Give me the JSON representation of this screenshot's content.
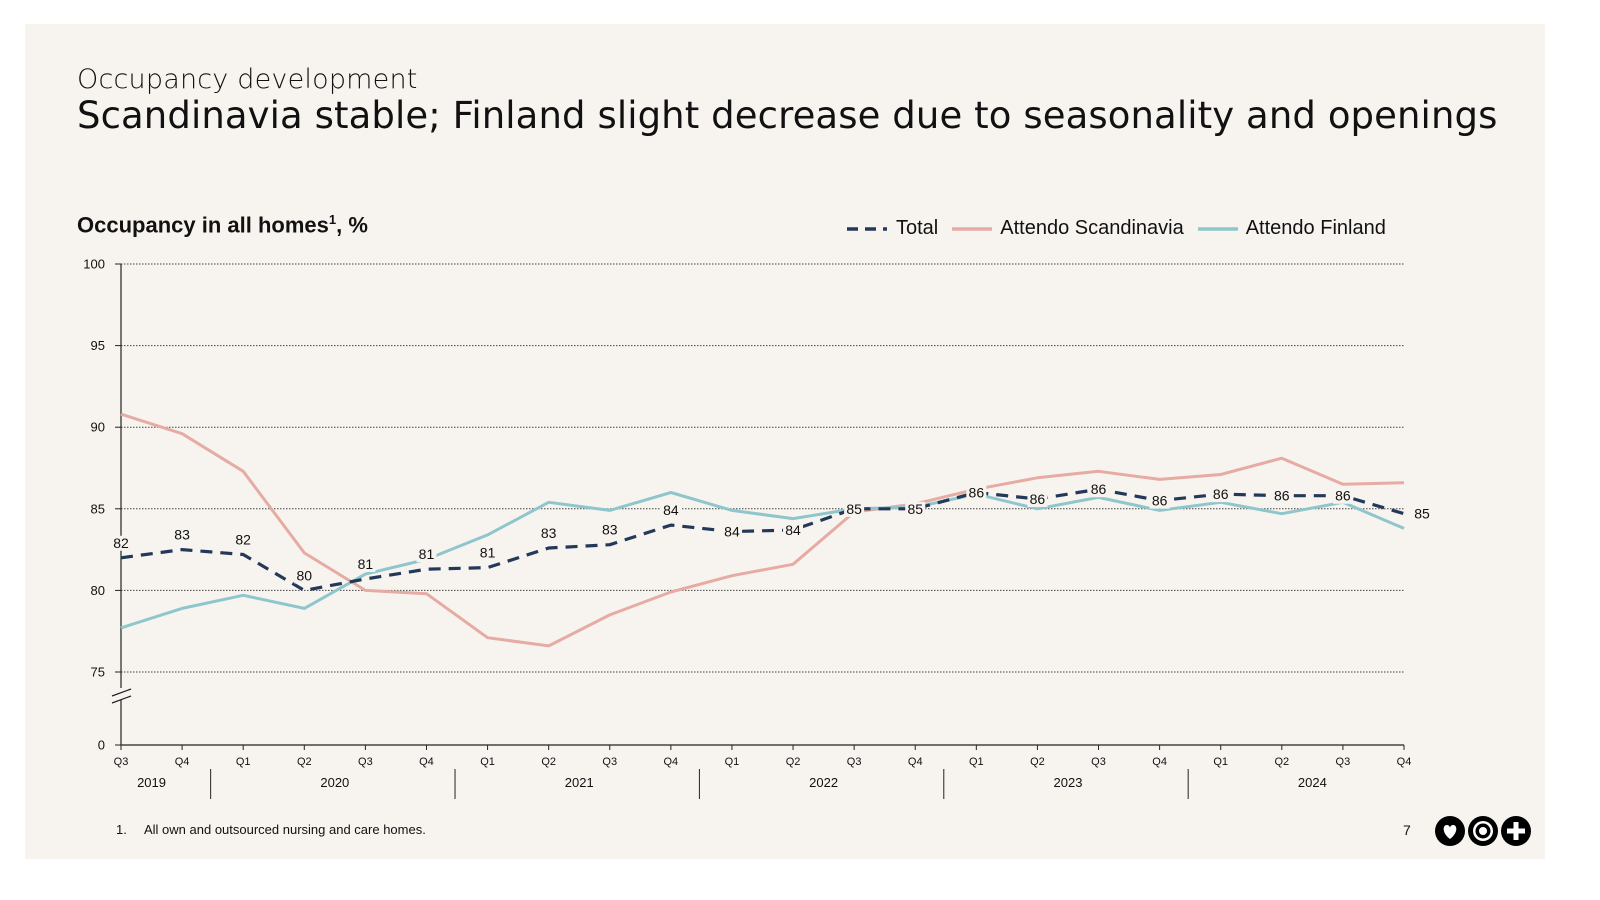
{
  "kicker": "Occupancy development",
  "headline": "Scandinavia stable; Finland slight decrease due to seasonality and openings",
  "chart_title": "Occupancy in all homes",
  "chart_title_sup": "1",
  "chart_title_suffix": ", %",
  "footnote": {
    "number": "1.",
    "text": "All own and outsourced nursing and care homes."
  },
  "page_number": "7",
  "colors": {
    "total": "#24395a",
    "scandinavia": "#e6aba3",
    "finland": "#8ec6cc",
    "background": "#f7f4f0"
  },
  "logo_icons": [
    "heart-icon",
    "target-icon",
    "plus-icon"
  ],
  "chart_data": {
    "type": "line",
    "title": "Occupancy in all homes¹, %",
    "ylabel": "%",
    "yticks": [
      0,
      75,
      80,
      85,
      90,
      95,
      100
    ],
    "ylim": [
      75,
      100
    ],
    "axis_break": true,
    "categories": [
      "Q3",
      "Q4",
      "Q1",
      "Q2",
      "Q3",
      "Q4",
      "Q1",
      "Q2",
      "Q3",
      "Q4",
      "Q1",
      "Q2",
      "Q3",
      "Q4",
      "Q1",
      "Q2",
      "Q3",
      "Q4",
      "Q1",
      "Q2",
      "Q3",
      "Q4"
    ],
    "year_groups": [
      {
        "label": "2019",
        "count": 2
      },
      {
        "label": "2020",
        "count": 4
      },
      {
        "label": "2021",
        "count": 4
      },
      {
        "label": "2022",
        "count": 4
      },
      {
        "label": "2023",
        "count": 4
      },
      {
        "label": "2024",
        "count": 4
      }
    ],
    "series": [
      {
        "name": "Total",
        "key": "total",
        "style": "dashed",
        "values": [
          82.0,
          82.5,
          82.2,
          80.0,
          80.7,
          81.3,
          81.4,
          82.6,
          82.8,
          84.0,
          83.6,
          83.7,
          85.0,
          85.0,
          86.0,
          85.6,
          86.2,
          85.5,
          85.9,
          85.8,
          85.8,
          84.7
        ],
        "labels": [
          "82",
          "83",
          "82",
          "80",
          "81",
          "81",
          "81",
          "83",
          "83",
          "84",
          "84",
          "84",
          "85",
          "85",
          "86",
          "86",
          "86",
          "86",
          "86",
          "86",
          "86",
          "85"
        ]
      },
      {
        "name": "Attendo Scandinavia",
        "key": "scandinavia",
        "style": "solid",
        "values": [
          90.8,
          89.6,
          87.3,
          82.3,
          80.0,
          79.8,
          77.1,
          76.6,
          78.5,
          79.9,
          80.9,
          81.6,
          84.8,
          85.3,
          86.2,
          86.9,
          87.3,
          86.8,
          87.1,
          88.1,
          86.5,
          86.6
        ]
      },
      {
        "name": "Attendo Finland",
        "key": "finland",
        "style": "solid",
        "values": [
          77.7,
          78.9,
          79.7,
          78.9,
          81.0,
          81.9,
          83.4,
          85.4,
          84.9,
          86.0,
          84.9,
          84.4,
          85.0,
          85.1,
          85.9,
          85.0,
          85.7,
          84.9,
          85.4,
          84.7,
          85.4,
          83.8
        ]
      }
    ]
  }
}
